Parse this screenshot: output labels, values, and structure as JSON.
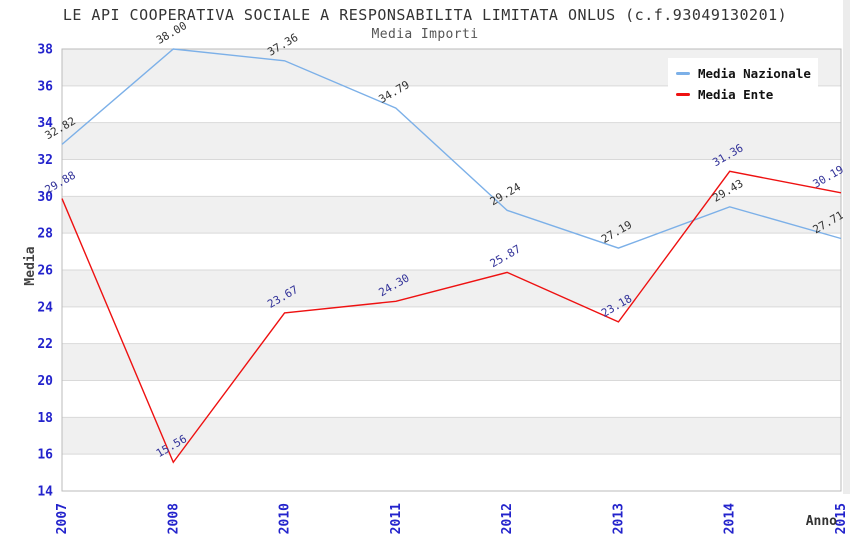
{
  "chart_data": {
    "type": "line",
    "title": "LE API COOPERATIVA SOCIALE A RESPONSABILITA LIMITATA ONLUS (c.f.93049130201)",
    "subtitle": "Media Importi",
    "xlabel": "Anno",
    "ylabel": "Media",
    "categories": [
      "2007",
      "2008",
      "2010",
      "2011",
      "2012",
      "2013",
      "2014",
      "2015"
    ],
    "series": [
      {
        "name": "Media Nazionale",
        "color": "#7cb0e8",
        "label_color": "#333333",
        "values": [
          32.82,
          38.0,
          37.36,
          34.79,
          29.24,
          27.19,
          29.43,
          27.71
        ],
        "labels": [
          "32.82",
          "38.00",
          "37.36",
          "34.79",
          "29.24",
          "27.19",
          "29.43",
          "27.71"
        ]
      },
      {
        "name": "Media Ente",
        "color": "#ee1111",
        "label_color": "#333399",
        "values": [
          29.88,
          15.56,
          23.67,
          24.3,
          25.87,
          23.18,
          31.36,
          30.19
        ],
        "labels": [
          "29.88",
          "15.56",
          "23.67",
          "24.30",
          "25.87",
          "23.18",
          "31.36",
          "30.19"
        ]
      }
    ],
    "ylim": [
      14,
      38
    ],
    "ytick_step": 2,
    "grid": true,
    "band_fill": "#f0f0f0",
    "gridline_color": "#d9d9d9",
    "plot_border_color": "#bbbbbb",
    "tick_color": "#2323cc",
    "legend_position": "top-right"
  }
}
